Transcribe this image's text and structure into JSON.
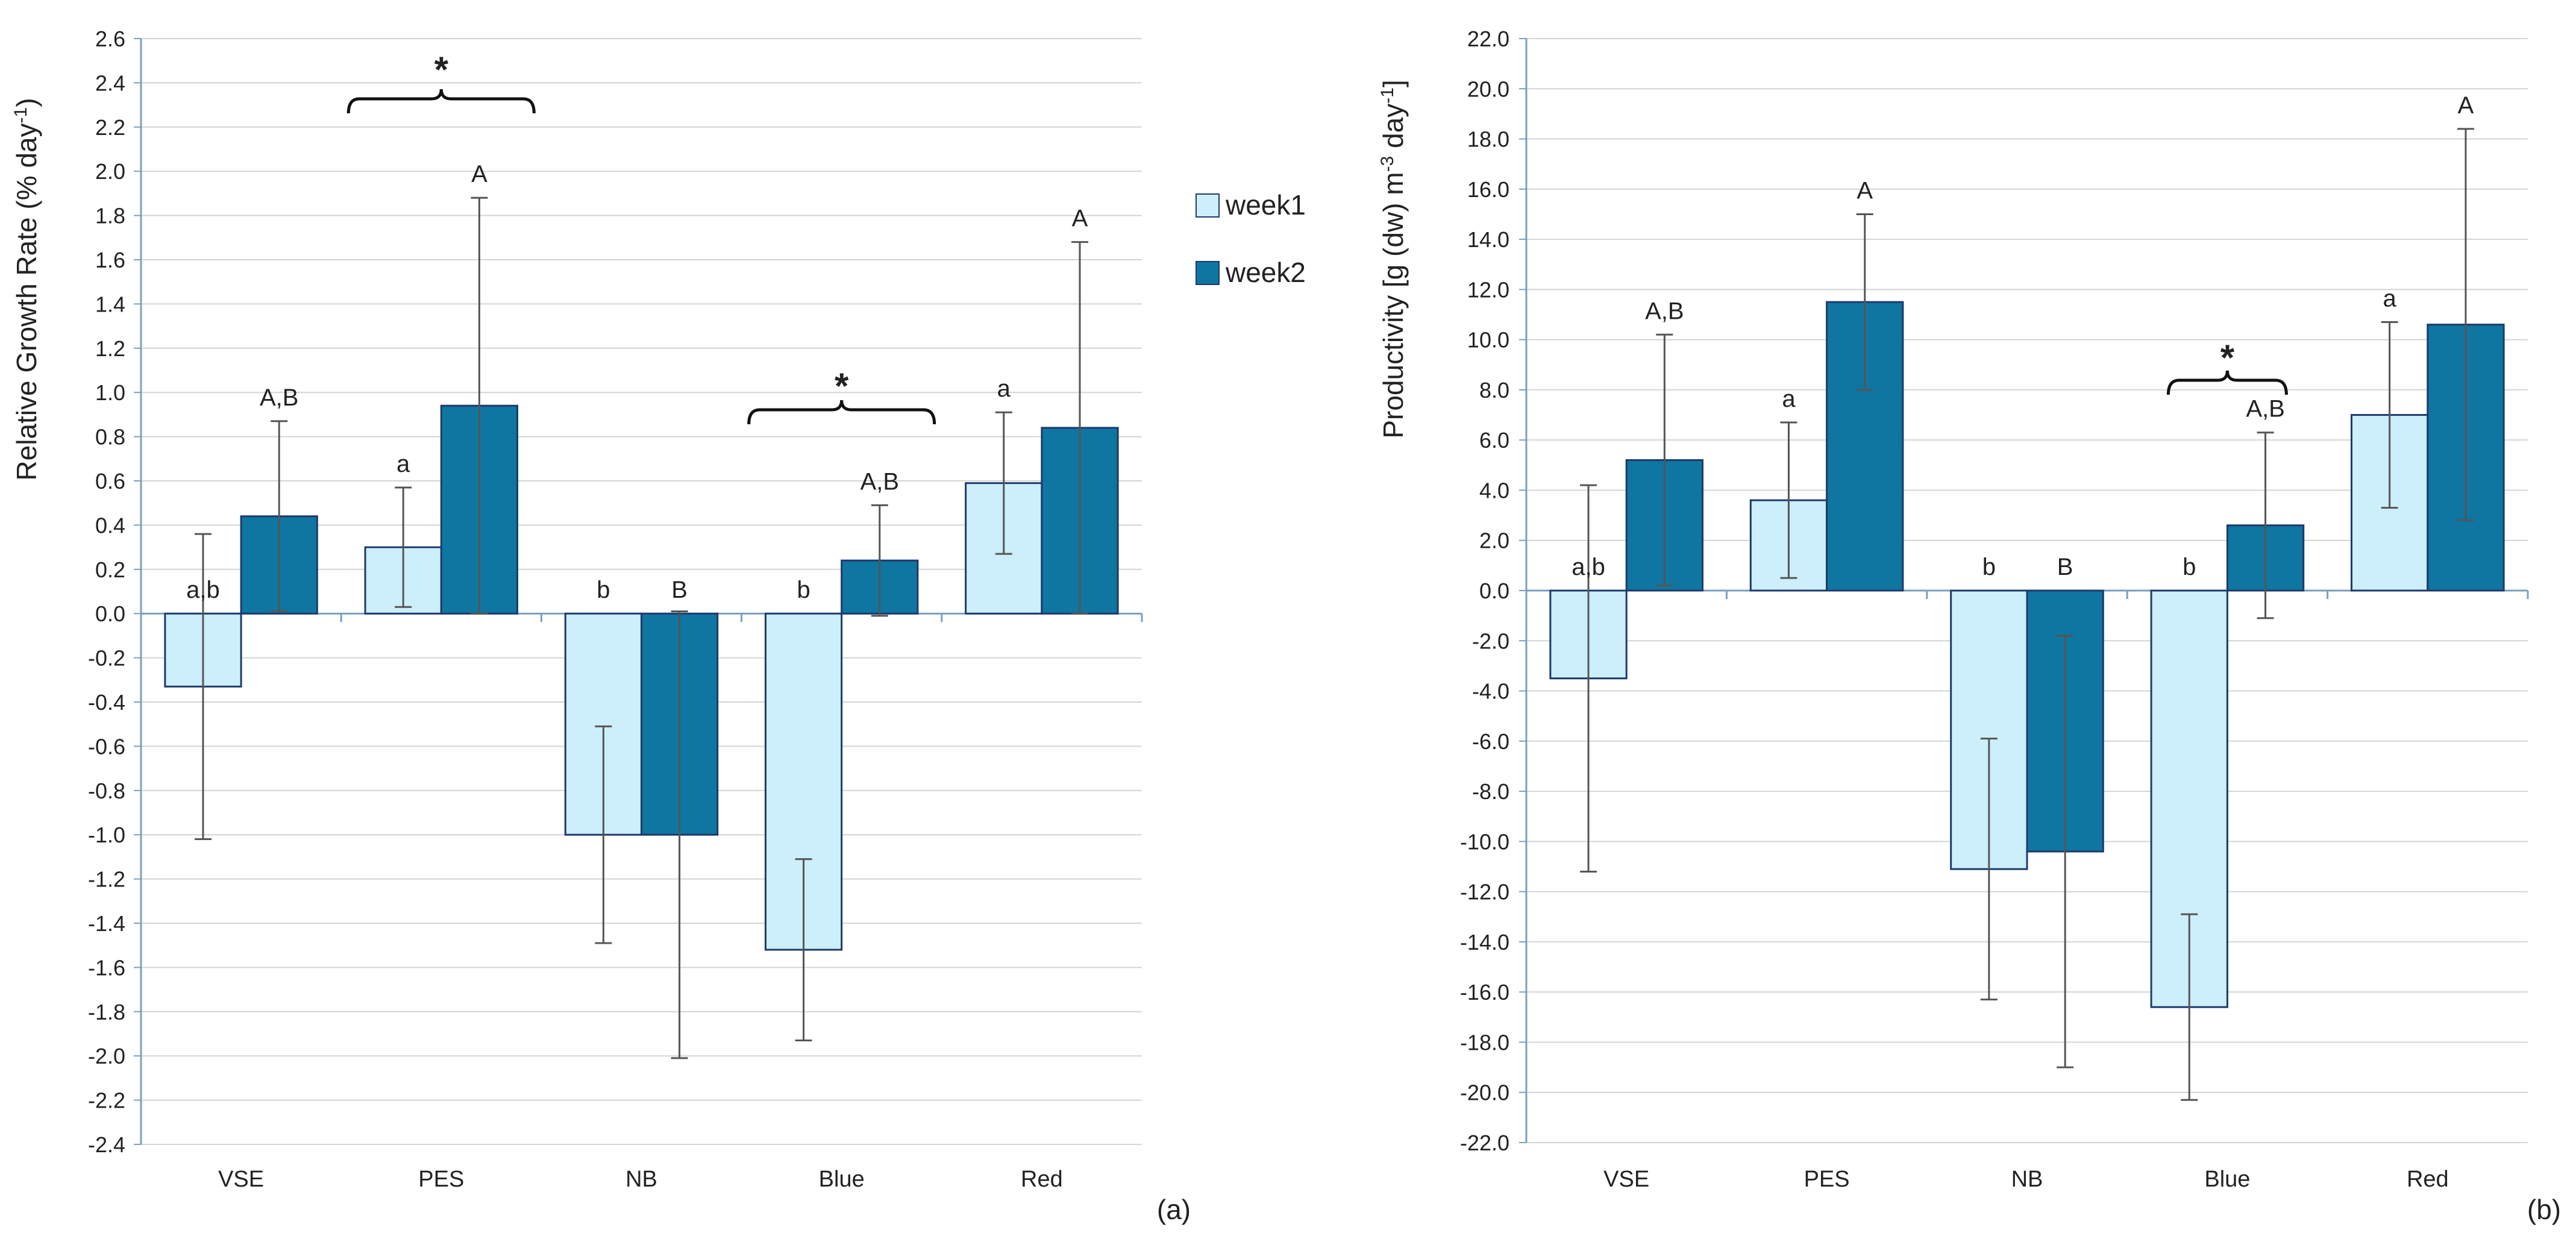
{
  "legend": {
    "position": "right of panel (a)",
    "entries": [
      {
        "label": "week1",
        "color": "#cdeefb"
      },
      {
        "label": "week2",
        "color": "#0e76a0"
      }
    ]
  },
  "colors": {
    "week1_fill": "#cdeefb",
    "week2_fill": "#0e76a0",
    "bar_outline": "#1d3a6e",
    "axis": "#7a9fbf",
    "grid": "#d4d4d4",
    "error_bar": "#555555"
  },
  "chart_data": [
    {
      "type": "bar",
      "panel_label": "(a)",
      "title": "",
      "xlabel": "",
      "ylabel": "Relative Growth Rate (% day",
      "ylabel_sup": "-1",
      "ylabel_end": ")",
      "categories": [
        "VSE",
        "PES",
        "NB",
        "Blue",
        "Red"
      ],
      "ylim": [
        -2.4,
        2.6
      ],
      "ytick_step": 0.2,
      "ytick_decimals": 1,
      "grid": true,
      "series": [
        {
          "name": "week1",
          "values": [
            -0.33,
            0.3,
            -1.0,
            -1.52,
            0.59
          ],
          "errors": [
            0.69,
            0.27,
            0.49,
            0.41,
            0.32
          ],
          "labels": [
            "a,b",
            "a",
            "b",
            "b",
            "a"
          ]
        },
        {
          "name": "week2",
          "values": [
            0.44,
            0.94,
            -1.0,
            0.24,
            0.84
          ],
          "errors": [
            0.43,
            0.94,
            1.01,
            0.25,
            0.84
          ],
          "labels": [
            "A,B",
            "A",
            "B",
            "A,B",
            "A"
          ]
        }
      ],
      "significance": [
        {
          "category": "PES",
          "label": "*"
        },
        {
          "category": "Blue",
          "label": "*"
        }
      ]
    },
    {
      "type": "bar",
      "panel_label": "(b)",
      "title": "",
      "xlabel": "",
      "ylabel": "Productivity [g (dw) m",
      "ylabel_sup": "-3",
      "ylabel_mid": " day",
      "ylabel_sup2": "-1",
      "ylabel_end": "]",
      "categories": [
        "VSE",
        "PES",
        "NB",
        "Blue",
        "Red"
      ],
      "ylim": [
        -22,
        22
      ],
      "ytick_step": 2,
      "ytick_decimals": 1,
      "grid": true,
      "series": [
        {
          "name": "week1",
          "values": [
            -3.5,
            3.6,
            -11.1,
            -16.6,
            7.0
          ],
          "errors": [
            7.7,
            3.1,
            5.2,
            3.7,
            3.7
          ],
          "labels": [
            "a,b",
            "a",
            "b",
            "b",
            "a"
          ]
        },
        {
          "name": "week2",
          "values": [
            5.2,
            11.5,
            -10.4,
            2.6,
            10.6
          ],
          "errors": [
            5.0,
            3.5,
            8.6,
            3.7,
            7.8
          ],
          "labels": [
            "A,B",
            "A",
            "B",
            "A,B",
            "A"
          ]
        }
      ],
      "significance": [
        {
          "category": "Blue",
          "label": "*"
        }
      ]
    }
  ]
}
